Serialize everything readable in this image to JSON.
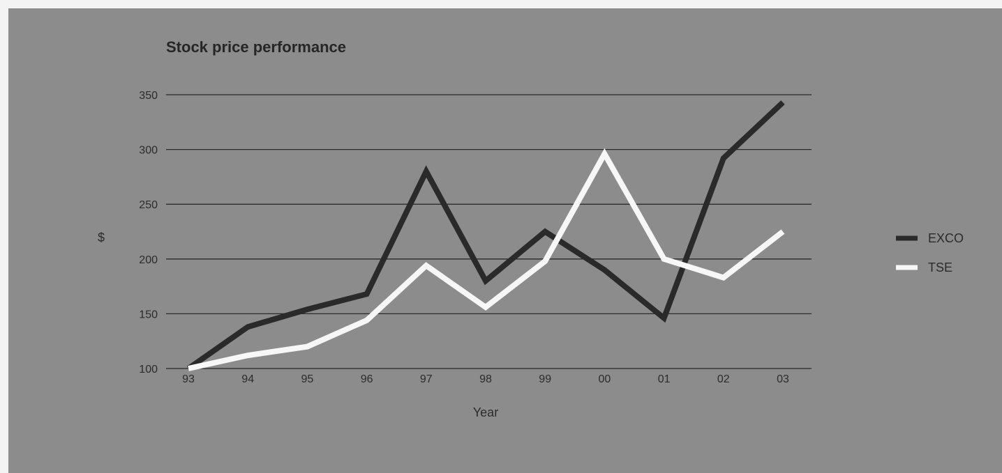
{
  "chart_data": {
    "type": "line",
    "title": "Stock price performance",
    "xlabel": "Year",
    "ylabel": "$",
    "categories": [
      "93",
      "94",
      "95",
      "96",
      "97",
      "98",
      "99",
      "00",
      "01",
      "02",
      "03"
    ],
    "ylim": [
      100,
      350
    ],
    "yticks": [
      100,
      150,
      200,
      250,
      300,
      350
    ],
    "grid": true,
    "legend_position": "right",
    "series": [
      {
        "name": "EXCO",
        "color": "#2a2a2a",
        "values": [
          100,
          138,
          154,
          168,
          280,
          180,
          225,
          190,
          146,
          292,
          343
        ]
      },
      {
        "name": "TSE",
        "color": "#f7f7f7",
        "values": [
          100,
          112,
          120,
          144,
          194,
          156,
          198,
          296,
          200,
          183,
          225
        ]
      }
    ]
  },
  "colors": {
    "background": "#8c8c8c",
    "gridline": "#2a2a2a",
    "frame": "#f3f3f3"
  }
}
